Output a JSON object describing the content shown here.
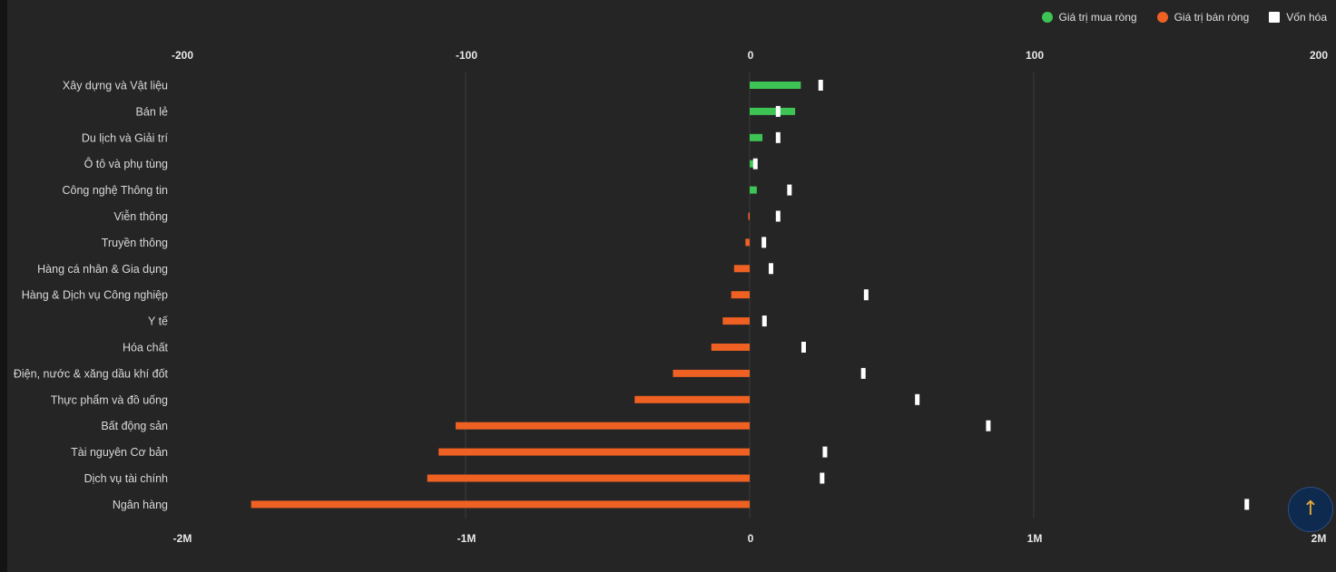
{
  "legend": {
    "buy_label": "Giá trị mua ròng",
    "sell_label": "Giá trị bán ròng",
    "cap_label": "Vốn hóa"
  },
  "colors": {
    "buy": "#3ec455",
    "sell": "#ee6123",
    "cap": "#ffffff",
    "grid": "#3a3a3a",
    "background": "#252525"
  },
  "scroll_top_icon": "arrow-up-icon",
  "chart_data": {
    "type": "bar",
    "orientation": "horizontal",
    "categories": [
      "Xây dựng và Vật liệu",
      "Bán lẻ",
      "Du lịch và Giải trí",
      "Ô tô và phụ tùng",
      "Công nghệ Thông tin",
      "Viễn thông",
      "Truyền thông",
      "Hàng cá nhân & Gia dụng",
      "Hàng & Dịch vụ Công nghiệp",
      "Y tế",
      "Hóa chất",
      "Điện, nước & xăng dầu khí đốt",
      "Thực phẩm và đồ uống",
      "Bất động sản",
      "Tài nguyên Cơ bản",
      "Dịch vụ tài chính",
      "Ngân hàng"
    ],
    "series": [
      {
        "name": "Giá trị mua ròng",
        "axis": "top",
        "values": [
          18,
          16,
          4.5,
          2.5,
          2.5,
          0,
          0,
          0,
          0,
          0,
          0,
          0,
          0,
          0,
          0,
          0,
          0
        ]
      },
      {
        "name": "Giá trị bán ròng",
        "axis": "top",
        "values": [
          0,
          0,
          0,
          0,
          0,
          -0.5,
          -1.5,
          -5.5,
          -6.5,
          -9.5,
          -13.5,
          -27,
          -40.5,
          -103.5,
          -109.5,
          -113.5,
          -175.5
        ]
      },
      {
        "name": "Vốn hóa",
        "axis": "bottom",
        "values": [
          250000,
          100000,
          100000,
          20000,
          140000,
          100000,
          50000,
          75000,
          410000,
          52000,
          190000,
          400000,
          590000,
          840000,
          265000,
          255000,
          1750000
        ]
      }
    ],
    "top_axis": {
      "ticks": [
        "-200",
        "-100",
        "0",
        "100",
        "200"
      ],
      "range": [
        -200,
        200
      ]
    },
    "bottom_axis": {
      "ticks": [
        "-2M",
        "-1M",
        "0",
        "1M",
        "2M"
      ],
      "range": [
        -2000000,
        2000000
      ]
    },
    "grid": true,
    "legend_position": "top-right"
  }
}
